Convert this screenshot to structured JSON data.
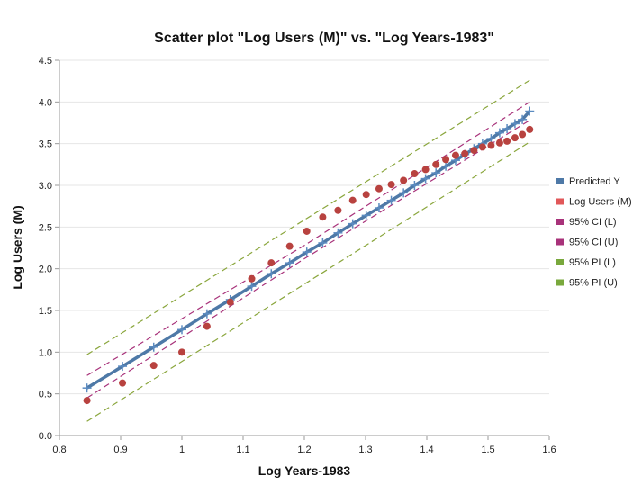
{
  "chart_data": {
    "type": "scatter",
    "title": "Scatter plot \"Log Users (M)\" vs. \"Log Years-1983\"",
    "xlabel": "Log Years-1983",
    "ylabel": "Log Users (M)",
    "xlim": [
      0.8,
      1.6
    ],
    "ylim": [
      0.0,
      4.5
    ],
    "x_ticks": [
      "0.8",
      "0.9",
      "1",
      "1.1",
      "1.2",
      "1.3",
      "1.4",
      "1.5",
      "1.6"
    ],
    "y_ticks": [
      "0.0",
      "0.5",
      "1.0",
      "1.5",
      "2.0",
      "2.5",
      "3.0",
      "3.5",
      "4.0",
      "4.5"
    ],
    "grid": "horizontal",
    "legend_position": "right",
    "series": [
      {
        "name": "Predicted Y",
        "style": "line-with-plus-markers",
        "color": "#4e79a7",
        "x": [
          0.845,
          0.903,
          0.954,
          1.0,
          1.041,
          1.079,
          1.114,
          1.146,
          1.176,
          1.204,
          1.23,
          1.255,
          1.279,
          1.301,
          1.322,
          1.342,
          1.362,
          1.38,
          1.398,
          1.415,
          1.431,
          1.447,
          1.462,
          1.477,
          1.491,
          1.505,
          1.519,
          1.531,
          1.544,
          1.556,
          1.568
        ],
        "y": [
          0.57,
          0.83,
          1.06,
          1.27,
          1.46,
          1.63,
          1.79,
          1.94,
          2.07,
          2.2,
          2.31,
          2.43,
          2.54,
          2.64,
          2.73,
          2.82,
          2.91,
          3.0,
          3.08,
          3.15,
          3.23,
          3.3,
          3.37,
          3.44,
          3.5,
          3.56,
          3.63,
          3.68,
          3.74,
          3.79,
          3.89
        ]
      },
      {
        "name": "Log Users (M)",
        "style": "dots",
        "color": "#b8423f",
        "x": [
          0.845,
          0.903,
          0.954,
          1.0,
          1.041,
          1.079,
          1.114,
          1.146,
          1.176,
          1.204,
          1.23,
          1.255,
          1.279,
          1.301,
          1.322,
          1.342,
          1.362,
          1.38,
          1.398,
          1.415,
          1.431,
          1.447,
          1.462,
          1.477,
          1.491,
          1.505,
          1.519,
          1.531,
          1.544,
          1.556,
          1.568
        ],
        "y": [
          0.42,
          0.63,
          0.84,
          1.0,
          1.31,
          1.6,
          1.88,
          2.07,
          2.27,
          2.45,
          2.62,
          2.7,
          2.82,
          2.89,
          2.96,
          3.01,
          3.06,
          3.14,
          3.19,
          3.25,
          3.31,
          3.36,
          3.38,
          3.42,
          3.46,
          3.48,
          3.51,
          3.53,
          3.57,
          3.61,
          3.67
        ]
      },
      {
        "name": "95% CI (L)",
        "style": "dashed",
        "color": "#a8327a",
        "x": [
          0.845,
          1.2,
          1.568
        ],
        "y": [
          0.45,
          2.12,
          3.78
        ]
      },
      {
        "name": "95% CI (U)",
        "style": "dashed",
        "color": "#a8327a",
        "x": [
          0.845,
          1.2,
          1.568
        ],
        "y": [
          0.72,
          2.28,
          4.0
        ]
      },
      {
        "name": "95% PI (L)",
        "style": "dashed",
        "color": "#8aa63c",
        "x": [
          0.845,
          1.568
        ],
        "y": [
          0.17,
          3.52
        ]
      },
      {
        "name": "95% PI (U)",
        "style": "dashed",
        "color": "#8aa63c",
        "x": [
          0.845,
          1.568
        ],
        "y": [
          0.97,
          4.26
        ]
      }
    ],
    "legend_swatch_colors": [
      "#4e79a7",
      "#e15759",
      "#a8327a",
      "#a8327a",
      "#79a83c",
      "#79a83c"
    ]
  }
}
